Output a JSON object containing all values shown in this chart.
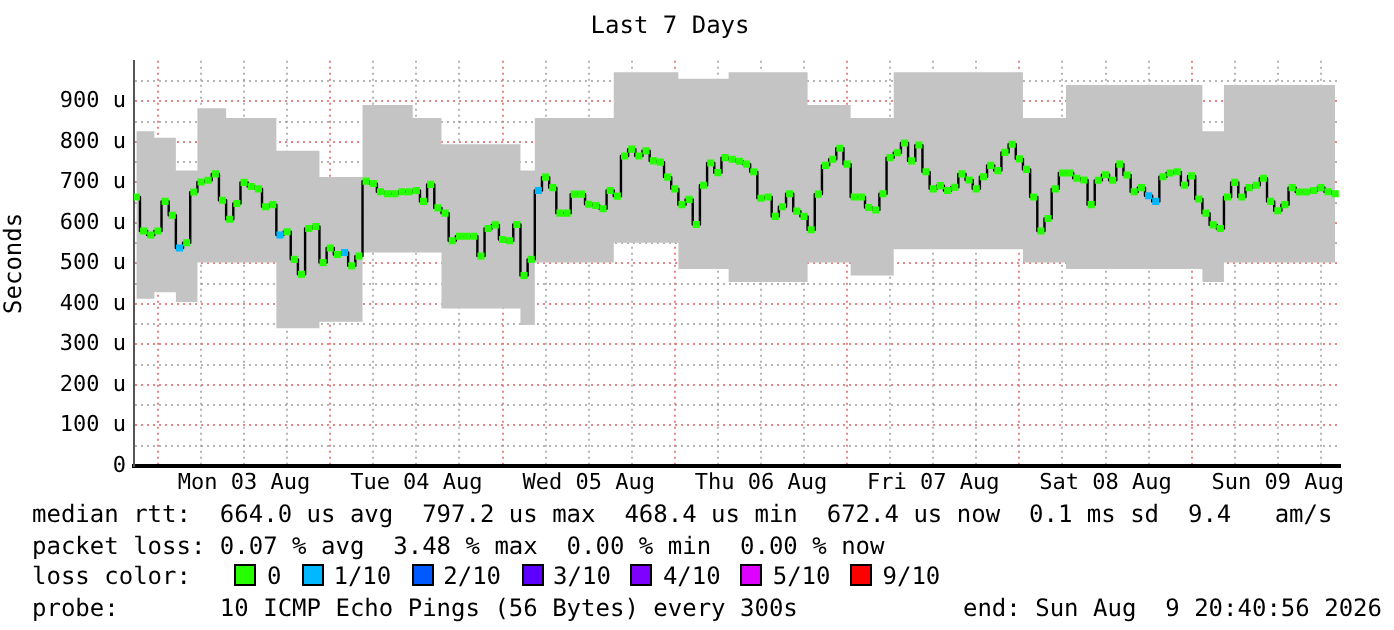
{
  "chart_data": {
    "type": "step",
    "title": "Last 7 Days",
    "ylabel": "Seconds",
    "grid": true,
    "legend": false,
    "marker": "square",
    "xlim": [
      "2026-08-02T20:40",
      "2026-08-09T20:40"
    ],
    "xticks": [
      {
        "value": "2026-08-03T00:00",
        "label": null
      },
      {
        "value": "2026-08-03T06:00",
        "label": null
      },
      {
        "value": "2026-08-03T12:00",
        "label": "Mon 03 Aug"
      },
      {
        "value": "2026-08-03T18:00",
        "label": null
      },
      {
        "value": "2026-08-04T00:00",
        "label": null
      },
      {
        "value": "2026-08-04T06:00",
        "label": null
      },
      {
        "value": "2026-08-04T12:00",
        "label": "Tue 04 Aug"
      },
      {
        "value": "2026-08-04T18:00",
        "label": null
      },
      {
        "value": "2026-08-05T00:00",
        "label": null
      },
      {
        "value": "2026-08-05T06:00",
        "label": null
      },
      {
        "value": "2026-08-05T12:00",
        "label": "Wed 05 Aug"
      },
      {
        "value": "2026-08-05T18:00",
        "label": null
      },
      {
        "value": "2026-08-06T00:00",
        "label": null
      },
      {
        "value": "2026-08-06T06:00",
        "label": null
      },
      {
        "value": "2026-08-06T12:00",
        "label": "Thu 06 Aug"
      },
      {
        "value": "2026-08-06T18:00",
        "label": null
      },
      {
        "value": "2026-08-07T00:00",
        "label": null
      },
      {
        "value": "2026-08-07T06:00",
        "label": null
      },
      {
        "value": "2026-08-07T12:00",
        "label": "Fri 07 Aug"
      },
      {
        "value": "2026-08-07T18:00",
        "label": null
      },
      {
        "value": "2026-08-08T00:00",
        "label": null
      },
      {
        "value": "2026-08-08T06:00",
        "label": null
      },
      {
        "value": "2026-08-08T12:00",
        "label": "Sat 08 Aug"
      },
      {
        "value": "2026-08-08T18:00",
        "label": null
      },
      {
        "value": "2026-08-09T00:00",
        "label": null
      },
      {
        "value": "2026-08-09T06:00",
        "label": null
      },
      {
        "value": "2026-08-09T12:00",
        "label": "Sun 09 Aug"
      },
      {
        "value": "2026-08-09T18:00",
        "label": null
      }
    ],
    "ylim": [
      0,
      1000
    ],
    "yticks": [
      0,
      {
        "value": 50,
        "label": null
      },
      {
        "value": 100,
        "label": "100 u"
      },
      {
        "value": 150,
        "label": null
      },
      {
        "value": 200,
        "label": "200 u"
      },
      {
        "value": 250,
        "label": null
      },
      {
        "value": 300,
        "label": "300 u"
      },
      {
        "value": 350,
        "label": null
      },
      {
        "value": 400,
        "label": "400 u"
      },
      {
        "value": 450,
        "label": null
      },
      {
        "value": 500,
        "label": "500 u"
      },
      {
        "value": 550,
        "label": null
      },
      {
        "value": 600,
        "label": "600 u"
      },
      {
        "value": 650,
        "label": null
      },
      {
        "value": 700,
        "label": "700 u"
      },
      {
        "value": 750,
        "label": null
      },
      {
        "value": 800,
        "label": "800 u"
      },
      {
        "value": 850,
        "label": null
      },
      {
        "value": 900,
        "label": "900 u"
      },
      {
        "value": 950,
        "label": null
      }
    ],
    "x": [
      "2026-08-02T21:00",
      "2026-08-02T22:00",
      "2026-08-02T23:00",
      "2026-08-03T00:00",
      "2026-08-03T01:00",
      "2026-08-03T02:00",
      "2026-08-03T03:00",
      "2026-08-03T04:00",
      "2026-08-03T05:00",
      "2026-08-03T06:00",
      "2026-08-03T07:00",
      "2026-08-03T08:00",
      "2026-08-03T09:00",
      "2026-08-03T10:00",
      "2026-08-03T11:00",
      "2026-08-03T12:00",
      "2026-08-03T13:00",
      "2026-08-03T14:00",
      "2026-08-03T15:00",
      "2026-08-03T16:00",
      "2026-08-03T17:00",
      "2026-08-03T18:00",
      "2026-08-03T19:00",
      "2026-08-03T20:00",
      "2026-08-03T21:00",
      "2026-08-03T22:00",
      "2026-08-03T23:00",
      "2026-08-04T00:00",
      "2026-08-04T01:00",
      "2026-08-04T02:00",
      "2026-08-04T03:00",
      "2026-08-04T04:00",
      "2026-08-04T05:00",
      "2026-08-04T06:00",
      "2026-08-04T07:00",
      "2026-08-04T08:00",
      "2026-08-04T09:00",
      "2026-08-04T10:00",
      "2026-08-04T11:00",
      "2026-08-04T12:00",
      "2026-08-04T13:00",
      "2026-08-04T14:00",
      "2026-08-04T15:00",
      "2026-08-04T16:00",
      "2026-08-04T17:00",
      "2026-08-04T18:00",
      "2026-08-04T19:00",
      "2026-08-04T20:00",
      "2026-08-04T21:00",
      "2026-08-04T22:00",
      "2026-08-04T23:00",
      "2026-08-05T00:00",
      "2026-08-05T01:00",
      "2026-08-05T02:00",
      "2026-08-05T03:00",
      "2026-08-05T04:00",
      "2026-08-05T05:00",
      "2026-08-05T06:00",
      "2026-08-05T07:00",
      "2026-08-05T08:00",
      "2026-08-05T09:00",
      "2026-08-05T10:00",
      "2026-08-05T11:00",
      "2026-08-05T12:00",
      "2026-08-05T13:00",
      "2026-08-05T14:00",
      "2026-08-05T15:00",
      "2026-08-05T16:00",
      "2026-08-05T17:00",
      "2026-08-05T18:00",
      "2026-08-05T19:00",
      "2026-08-05T20:00",
      "2026-08-05T21:00",
      "2026-08-05T22:00",
      "2026-08-05T23:00",
      "2026-08-06T00:00",
      "2026-08-06T01:00",
      "2026-08-06T02:00",
      "2026-08-06T03:00",
      "2026-08-06T04:00",
      "2026-08-06T05:00",
      "2026-08-06T06:00",
      "2026-08-06T07:00",
      "2026-08-06T08:00",
      "2026-08-06T09:00",
      "2026-08-06T10:00",
      "2026-08-06T11:00",
      "2026-08-06T12:00",
      "2026-08-06T13:00",
      "2026-08-06T14:00",
      "2026-08-06T15:00",
      "2026-08-06T16:00",
      "2026-08-06T17:00",
      "2026-08-06T18:00",
      "2026-08-06T19:00",
      "2026-08-06T20:00",
      "2026-08-06T21:00",
      "2026-08-06T22:00",
      "2026-08-06T23:00",
      "2026-08-07T00:00",
      "2026-08-07T01:00",
      "2026-08-07T02:00",
      "2026-08-07T03:00",
      "2026-08-07T04:00",
      "2026-08-07T05:00",
      "2026-08-07T06:00",
      "2026-08-07T07:00",
      "2026-08-07T08:00",
      "2026-08-07T09:00",
      "2026-08-07T10:00",
      "2026-08-07T11:00",
      "2026-08-07T12:00",
      "2026-08-07T13:00",
      "2026-08-07T14:00",
      "2026-08-07T15:00",
      "2026-08-07T16:00",
      "2026-08-07T17:00",
      "2026-08-07T18:00",
      "2026-08-07T19:00",
      "2026-08-07T20:00",
      "2026-08-07T21:00",
      "2026-08-07T22:00",
      "2026-08-07T23:00",
      "2026-08-08T00:00",
      "2026-08-08T01:00",
      "2026-08-08T02:00",
      "2026-08-08T03:00",
      "2026-08-08T04:00",
      "2026-08-08T05:00",
      "2026-08-08T06:00",
      "2026-08-08T07:00",
      "2026-08-08T08:00",
      "2026-08-08T09:00",
      "2026-08-08T10:00",
      "2026-08-08T11:00",
      "2026-08-08T12:00",
      "2026-08-08T13:00",
      "2026-08-08T14:00",
      "2026-08-08T15:00",
      "2026-08-08T16:00",
      "2026-08-08T17:00",
      "2026-08-08T18:00",
      "2026-08-08T19:00",
      "2026-08-08T20:00",
      "2026-08-08T21:00",
      "2026-08-08T22:00",
      "2026-08-08T23:00",
      "2026-08-09T00:00",
      "2026-08-09T01:00",
      "2026-08-09T02:00",
      "2026-08-09T03:00",
      "2026-08-09T04:00",
      "2026-08-09T05:00",
      "2026-08-09T06:00",
      "2026-08-09T07:00",
      "2026-08-09T08:00",
      "2026-08-09T09:00",
      "2026-08-09T10:00",
      "2026-08-09T11:00",
      "2026-08-09T12:00",
      "2026-08-09T13:00",
      "2026-08-09T14:00",
      "2026-08-09T15:00",
      "2026-08-09T16:00",
      "2026-08-09T17:00",
      "2026-08-09T18:00",
      "2026-08-09T19:00",
      "2026-08-09T20:00"
    ],
    "series": [
      {
        "color": "#000000",
        "values": [
          664,
          580,
          570,
          580,
          653,
          619,
          538,
          551,
          676,
          701,
          705,
          721,
          656,
          609,
          648,
          700,
          690,
          684,
          640,
          645,
          570,
          578,
          510,
          473,
          586,
          591,
          502,
          538,
          522,
          527,
          494,
          518,
          703,
          697,
          677,
          672,
          672,
          677,
          677,
          680,
          653,
          695,
          637,
          624,
          556,
          567,
          567,
          567,
          518,
          586,
          595,
          559,
          556,
          596,
          470,
          510,
          680,
          713,
          687,
          624,
          624,
          671,
          671,
          646,
          643,
          635,
          680,
          666,
          765,
          782,
          765,
          778,
          753,
          750,
          713,
          684,
          645,
          658,
          596,
          693,
          748,
          724,
          761,
          757,
          752,
          745,
          726,
          661,
          664,
          616,
          640,
          672,
          629,
          616,
          583,
          671,
          742,
          757,
          784,
          745,
          664,
          664,
          638,
          632,
          672,
          761,
          773,
          797,
          753,
          792,
          726,
          684,
          692,
          680,
          688,
          721,
          706,
          684,
          714,
          742,
          729,
          774,
          794,
          758,
          732,
          664,
          580,
          611,
          684,
          723,
          723,
          710,
          706,
          645,
          705,
          719,
          705,
          745,
          718,
          677,
          687,
          667,
          653,
          714,
          723,
          726,
          693,
          716,
          659,
          624,
          595,
          586,
          664,
          700,
          664,
          687,
          693,
          710,
          653,
          630,
          645,
          687,
          676,
          676,
          680,
          687,
          677,
          672
        ],
        "upper": [
          826,
          826,
          826,
          810,
          810,
          810,
          729,
          729,
          729,
          883,
          883,
          883,
          883,
          859,
          859,
          859,
          859,
          859,
          859,
          859,
          778,
          778,
          778,
          778,
          778,
          778,
          713,
          713,
          713,
          713,
          713,
          713,
          891,
          891,
          891,
          891,
          891,
          891,
          891,
          859,
          859,
          859,
          859,
          794,
          794,
          794,
          794,
          794,
          794,
          794,
          794,
          794,
          794,
          794,
          729,
          729,
          859,
          859,
          859,
          859,
          859,
          859,
          859,
          859,
          859,
          859,
          859,
          972,
          972,
          972,
          972,
          972,
          972,
          972,
          972,
          972,
          956,
          956,
          956,
          956,
          956,
          956,
          956,
          972,
          972,
          972,
          972,
          972,
          972,
          972,
          972,
          972,
          972,
          972,
          891,
          891,
          891,
          891,
          891,
          891,
          859,
          859,
          859,
          859,
          859,
          859,
          972,
          972,
          972,
          972,
          972,
          972,
          972,
          972,
          972,
          972,
          972,
          972,
          972,
          972,
          972,
          972,
          972,
          972,
          859,
          859,
          859,
          859,
          859,
          859,
          940,
          940,
          940,
          940,
          940,
          940,
          940,
          940,
          940,
          940,
          940,
          940,
          940,
          940,
          940,
          940,
          940,
          940,
          940,
          826,
          826,
          826,
          940,
          940,
          940,
          940,
          940,
          940,
          940,
          940,
          940,
          940,
          940,
          940,
          940,
          940,
          940,
          940
        ],
        "lower": [
          413,
          413,
          413,
          429,
          429,
          429,
          405,
          405,
          405,
          502,
          502,
          502,
          502,
          502,
          502,
          502,
          502,
          502,
          502,
          502,
          340,
          340,
          340,
          340,
          340,
          340,
          356,
          356,
          356,
          356,
          356,
          356,
          527,
          527,
          527,
          527,
          527,
          527,
          527,
          527,
          527,
          527,
          527,
          389,
          389,
          389,
          389,
          389,
          389,
          389,
          389,
          389,
          389,
          389,
          348,
          348,
          502,
          502,
          502,
          502,
          502,
          502,
          502,
          502,
          502,
          502,
          502,
          551,
          551,
          551,
          551,
          551,
          551,
          551,
          551,
          551,
          486,
          486,
          486,
          486,
          486,
          486,
          486,
          454,
          454,
          454,
          454,
          454,
          454,
          454,
          454,
          454,
          454,
          454,
          502,
          502,
          502,
          502,
          502,
          502,
          470,
          470,
          470,
          470,
          470,
          470,
          535,
          535,
          535,
          535,
          535,
          535,
          535,
          535,
          535,
          535,
          535,
          535,
          535,
          535,
          535,
          535,
          535,
          535,
          502,
          502,
          502,
          502,
          502,
          502,
          486,
          486,
          486,
          486,
          486,
          486,
          486,
          486,
          486,
          486,
          486,
          486,
          486,
          486,
          486,
          486,
          486,
          486,
          486,
          454,
          454,
          454,
          502,
          502,
          502,
          502,
          502,
          502,
          502,
          502,
          502,
          502,
          502,
          502,
          502,
          502,
          502,
          502
        ],
        "colors": [
          "#26ff00",
          "#26ff00",
          "#26ff00",
          "#26ff00",
          "#26ff00",
          "#26ff00",
          "#00b8ff",
          "#26ff00",
          "#26ff00",
          "#26ff00",
          "#26ff00",
          "#26ff00",
          "#26ff00",
          "#26ff00",
          "#26ff00",
          "#26ff00",
          "#26ff00",
          "#26ff00",
          "#26ff00",
          "#26ff00",
          "#00b8ff",
          "#26ff00",
          "#26ff00",
          "#26ff00",
          "#26ff00",
          "#26ff00",
          "#26ff00",
          "#26ff00",
          "#26ff00",
          "#00b8ff",
          "#26ff00",
          "#26ff00",
          "#26ff00",
          "#26ff00",
          "#26ff00",
          "#26ff00",
          "#26ff00",
          "#26ff00",
          "#26ff00",
          "#26ff00",
          "#26ff00",
          "#26ff00",
          "#26ff00",
          "#26ff00",
          "#26ff00",
          "#26ff00",
          "#26ff00",
          "#26ff00",
          "#26ff00",
          "#26ff00",
          "#26ff00",
          "#26ff00",
          "#26ff00",
          "#26ff00",
          "#26ff00",
          "#26ff00",
          "#00b8ff",
          "#26ff00",
          "#26ff00",
          "#26ff00",
          "#26ff00",
          "#26ff00",
          "#26ff00",
          "#26ff00",
          "#26ff00",
          "#26ff00",
          "#26ff00",
          "#26ff00",
          "#26ff00",
          "#26ff00",
          "#26ff00",
          "#26ff00",
          "#26ff00",
          "#26ff00",
          "#26ff00",
          "#26ff00",
          "#26ff00",
          "#26ff00",
          "#26ff00",
          "#26ff00",
          "#26ff00",
          "#26ff00",
          "#26ff00",
          "#26ff00",
          "#26ff00",
          "#26ff00",
          "#26ff00",
          "#26ff00",
          "#26ff00",
          "#26ff00",
          "#26ff00",
          "#26ff00",
          "#26ff00",
          "#26ff00",
          "#26ff00",
          "#26ff00",
          "#26ff00",
          "#26ff00",
          "#26ff00",
          "#26ff00",
          "#26ff00",
          "#26ff00",
          "#26ff00",
          "#26ff00",
          "#26ff00",
          "#26ff00",
          "#26ff00",
          "#26ff00",
          "#26ff00",
          "#26ff00",
          "#26ff00",
          "#26ff00",
          "#26ff00",
          "#26ff00",
          "#26ff00",
          "#26ff00",
          "#26ff00",
          "#26ff00",
          "#26ff00",
          "#26ff00",
          "#26ff00",
          "#26ff00",
          "#26ff00",
          "#26ff00",
          "#26ff00",
          "#26ff00",
          "#26ff00",
          "#26ff00",
          "#26ff00",
          "#26ff00",
          "#26ff00",
          "#26ff00",
          "#26ff00",
          "#26ff00",
          "#26ff00",
          "#26ff00",
          "#26ff00",
          "#26ff00",
          "#26ff00",
          "#26ff00",
          "#26ff00",
          "#00b8ff",
          "#00b8ff",
          "#26ff00",
          "#26ff00",
          "#26ff00",
          "#26ff00",
          "#26ff00",
          "#26ff00",
          "#26ff00",
          "#26ff00",
          "#26ff00",
          "#26ff00",
          "#26ff00",
          "#26ff00",
          "#26ff00",
          "#26ff00",
          "#26ff00",
          "#26ff00",
          "#26ff00",
          "#26ff00",
          "#26ff00",
          "#26ff00",
          "#26ff00",
          "#26ff00",
          "#26ff00",
          "#26ff00",
          "#26ff00"
        ]
      }
    ],
    "annotations": [
      "median rtt:  664.0 us avg  797.2 us max  468.4 us min  672.4 us now  0.1 ms sd  9.4   am/s",
      "packet loss: 0.07 % avg  3.48 % max  0.00 % min  0.00 % now",
      "loss color:",
      "0",
      "1/10",
      "2/10",
      "3/10",
      "4/10",
      "5/10",
      "9/10",
      "probe:       10 ICMP Echo Pings (56 Bytes) every 300s",
      "end: Sun Aug  9 20:40:56 2026"
    ]
  }
}
